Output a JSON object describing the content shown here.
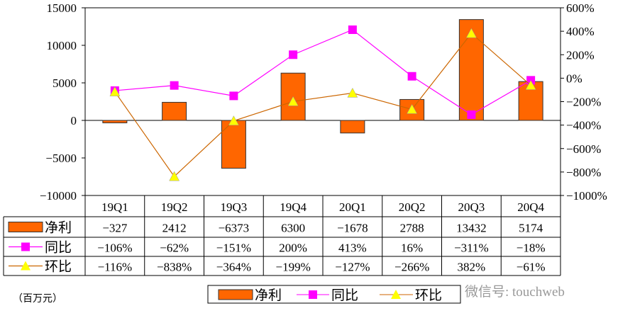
{
  "chart_data": {
    "type": "bar+line",
    "categories": [
      "19Q1",
      "19Q2",
      "19Q3",
      "19Q4",
      "20Q1",
      "20Q2",
      "20Q3",
      "20Q4"
    ],
    "series": [
      {
        "name": "净利",
        "kind": "bar",
        "axis": "left",
        "color": "#FF6600",
        "values": [
          -327,
          2412,
          -6373,
          6300,
          -1678,
          2788,
          13432,
          5174
        ],
        "labels": [
          "-327",
          "2412",
          "-6373",
          "6300",
          "-1678",
          "2788",
          "13432",
          "5174"
        ]
      },
      {
        "name": "同比",
        "kind": "line",
        "axis": "right",
        "color": "#FF00FF",
        "marker": "square",
        "values": [
          -106,
          -62,
          -151,
          200,
          413,
          16,
          -311,
          -18
        ],
        "labels": [
          "-106%",
          "-62%",
          "-151%",
          "200%",
          "413%",
          "16%",
          "-311%",
          "-18%"
        ]
      },
      {
        "name": "环比",
        "kind": "line",
        "axis": "right",
        "color": "#CC6600",
        "marker_color": "#FFFF00",
        "marker": "triangle",
        "values": [
          -116,
          -838,
          -364,
          -199,
          -127,
          -266,
          382,
          -61
        ],
        "labels": [
          "-116%",
          "-838%",
          "-364%",
          "-199%",
          "-127%",
          "-266%",
          "382%",
          "-61%"
        ]
      }
    ],
    "y_left": {
      "range": [
        -10000,
        15000
      ],
      "ticks": [
        "-10000",
        "-5000",
        "0",
        "5000",
        "10000",
        "15000"
      ]
    },
    "y_right": {
      "range": [
        -1000,
        600
      ],
      "ticks": [
        "-1000%",
        "-800%",
        "-600%",
        "-400%",
        "-200%",
        "0%",
        "200%",
        "400%",
        "600%"
      ]
    },
    "grid": false,
    "legend": "bottom",
    "unit_note": "（百万元）"
  },
  "watermark": "微信号: touchweb"
}
